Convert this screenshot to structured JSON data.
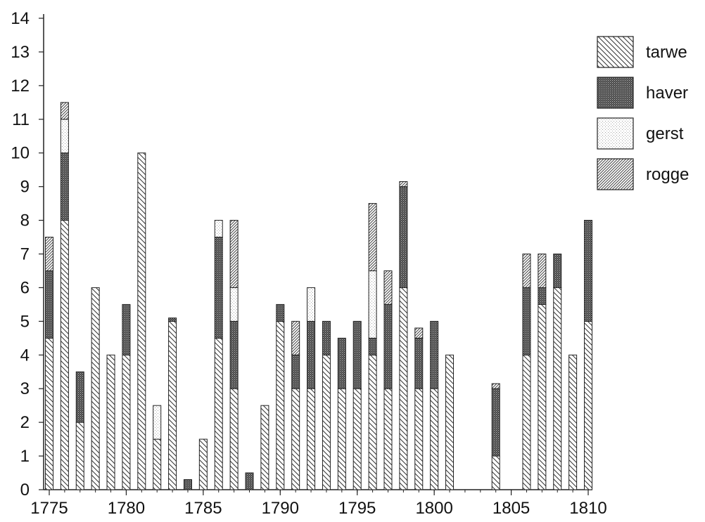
{
  "chart_data": {
    "type": "bar",
    "stacked": true,
    "title": "",
    "xlabel": "",
    "ylabel": "",
    "ylim": [
      0,
      14
    ],
    "yticks": [
      0,
      1,
      2,
      3,
      4,
      5,
      6,
      7,
      8,
      9,
      10,
      11,
      12,
      13,
      14
    ],
    "xticks": [
      1775,
      1780,
      1785,
      1790,
      1795,
      1800,
      1805,
      1810
    ],
    "grid": false,
    "legend_position": "top-right",
    "categories": [
      1775,
      1776,
      1777,
      1778,
      1779,
      1780,
      1781,
      1782,
      1783,
      1784,
      1785,
      1786,
      1787,
      1788,
      1789,
      1790,
      1791,
      1792,
      1793,
      1794,
      1795,
      1796,
      1797,
      1798,
      1799,
      1800,
      1801,
      1802,
      1803,
      1804,
      1805,
      1806,
      1807,
      1808,
      1809,
      1810
    ],
    "series": [
      {
        "name": "tarwe",
        "pattern": "tarwe",
        "values": [
          4.5,
          8,
          2,
          6,
          4,
          4,
          10,
          1.5,
          5,
          0,
          1.5,
          4.5,
          3,
          0,
          2.5,
          5,
          3,
          3,
          4,
          3,
          3,
          4,
          3,
          6,
          3,
          3,
          4,
          0,
          0,
          1,
          0,
          4,
          5.5,
          6,
          4,
          5
        ]
      },
      {
        "name": "haver",
        "pattern": "haver",
        "values": [
          2,
          2,
          1.5,
          0,
          0,
          1.5,
          0,
          0,
          0.1,
          0.3,
          0,
          3,
          2,
          0.5,
          0,
          0.5,
          1,
          2,
          1,
          1.5,
          2,
          0.5,
          2.5,
          3,
          1.5,
          2,
          0,
          0,
          0,
          2,
          0,
          2,
          0.5,
          1,
          0,
          3
        ]
      },
      {
        "name": "gerst",
        "pattern": "gerst",
        "values": [
          0,
          1,
          0,
          0,
          0,
          0,
          0,
          1,
          0,
          0,
          0,
          0.5,
          1,
          0,
          0,
          0,
          0,
          1,
          0,
          0,
          0,
          2,
          0,
          0,
          0,
          0,
          0,
          0,
          0,
          0,
          0,
          0,
          0,
          0,
          0,
          0
        ]
      },
      {
        "name": "rogge",
        "pattern": "rogge",
        "values": [
          1,
          0.5,
          0,
          0,
          0,
          0,
          0,
          0,
          0,
          0,
          0,
          0,
          2,
          0,
          0,
          0,
          1,
          0,
          0,
          0,
          0,
          2,
          1,
          0.15,
          0.3,
          0,
          0,
          0,
          0,
          0.15,
          0,
          1,
          1,
          0,
          0,
          0
        ]
      }
    ],
    "legend": [
      {
        "name": "tarwe",
        "pattern": "tarwe"
      },
      {
        "name": "haver",
        "pattern": "haver"
      },
      {
        "name": "gerst",
        "pattern": "gerst"
      },
      {
        "name": "rogge",
        "pattern": "rogge"
      }
    ]
  }
}
